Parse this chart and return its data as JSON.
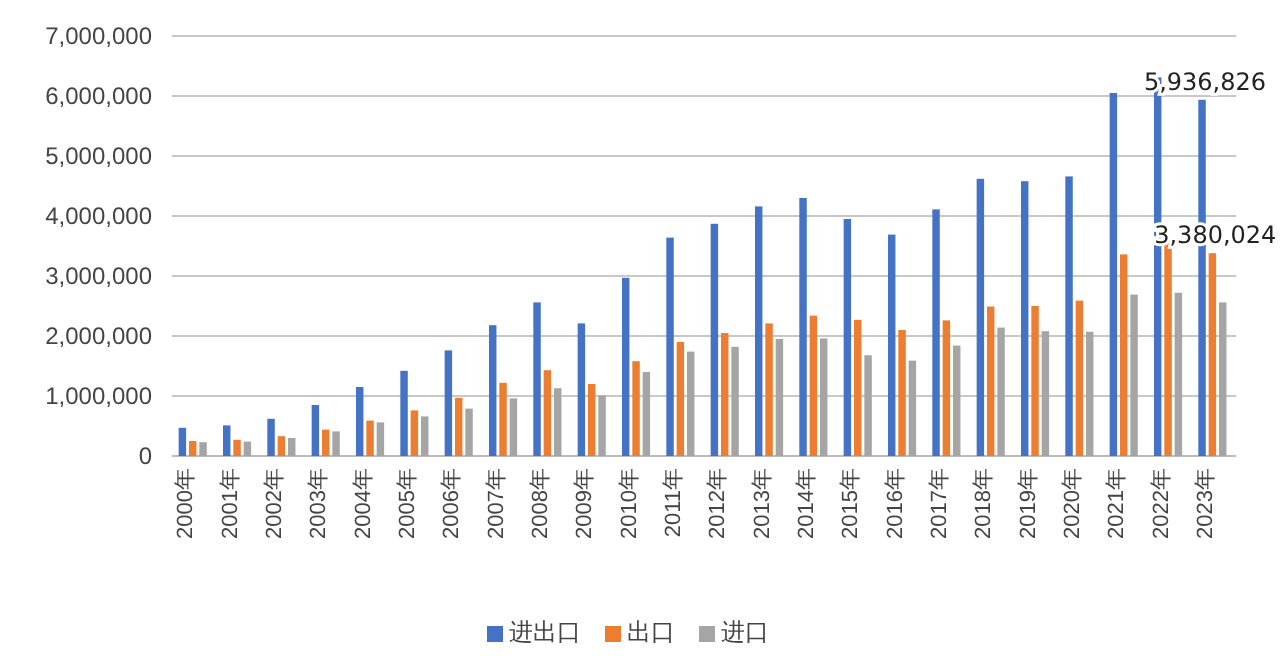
{
  "chart_data": {
    "type": "bar",
    "categories": [
      "2000年",
      "2001年",
      "2002年",
      "2003年",
      "2004年",
      "2005年",
      "2006年",
      "2007年",
      "2008年",
      "2009年",
      "2010年",
      "2011年",
      "2012年",
      "2013年",
      "2014年",
      "2015年",
      "2016年",
      "2017年",
      "2018年",
      "2019年",
      "2020年",
      "2021年",
      "2022年",
      "2023年"
    ],
    "series": [
      {
        "name": "进出口",
        "color": "#4472c4",
        "values": [
          470000,
          510000,
          620000,
          850000,
          1150000,
          1420000,
          1760000,
          2180000,
          2560000,
          2210000,
          2970000,
          3640000,
          3870000,
          4160000,
          4300000,
          3950000,
          3690000,
          4110000,
          4620000,
          4580000,
          4660000,
          6050000,
          6310000,
          5936826
        ],
        "value_labels": [
          null,
          null,
          null,
          null,
          null,
          null,
          null,
          null,
          null,
          null,
          null,
          null,
          null,
          null,
          null,
          null,
          null,
          null,
          null,
          null,
          null,
          null,
          null,
          "5,936,826"
        ]
      },
      {
        "name": "出口",
        "color": "#ed7d31",
        "values": [
          250000,
          270000,
          330000,
          440000,
          590000,
          760000,
          970000,
          1220000,
          1430000,
          1200000,
          1580000,
          1900000,
          2050000,
          2210000,
          2340000,
          2270000,
          2100000,
          2260000,
          2490000,
          2500000,
          2590000,
          3360000,
          3590000,
          3380024
        ],
        "value_labels": [
          null,
          null,
          null,
          null,
          null,
          null,
          null,
          null,
          null,
          null,
          null,
          null,
          null,
          null,
          null,
          null,
          null,
          null,
          null,
          null,
          null,
          null,
          null,
          "3,380,024"
        ]
      },
      {
        "name": "进口",
        "color": "#a5a5a5",
        "values": [
          230000,
          240000,
          300000,
          410000,
          560000,
          660000,
          790000,
          960000,
          1130000,
          1010000,
          1400000,
          1740000,
          1820000,
          1950000,
          1960000,
          1680000,
          1590000,
          1840000,
          2140000,
          2080000,
          2070000,
          2690000,
          2720000,
          2560000
        ]
      }
    ],
    "ylim": [
      0,
      7000000
    ],
    "yticks": [
      {
        "value": 0,
        "label": "0"
      },
      {
        "value": 1000000,
        "label": "1,000,000"
      },
      {
        "value": 2000000,
        "label": "2,000,000"
      },
      {
        "value": 3000000,
        "label": "3,000,000"
      },
      {
        "value": 4000000,
        "label": "4,000,000"
      },
      {
        "value": 5000000,
        "label": "5,000,000"
      },
      {
        "value": 6000000,
        "label": "6,000,000"
      },
      {
        "value": 7000000,
        "label": "7,000,000"
      }
    ],
    "grid": "y",
    "legend": "bottom"
  }
}
